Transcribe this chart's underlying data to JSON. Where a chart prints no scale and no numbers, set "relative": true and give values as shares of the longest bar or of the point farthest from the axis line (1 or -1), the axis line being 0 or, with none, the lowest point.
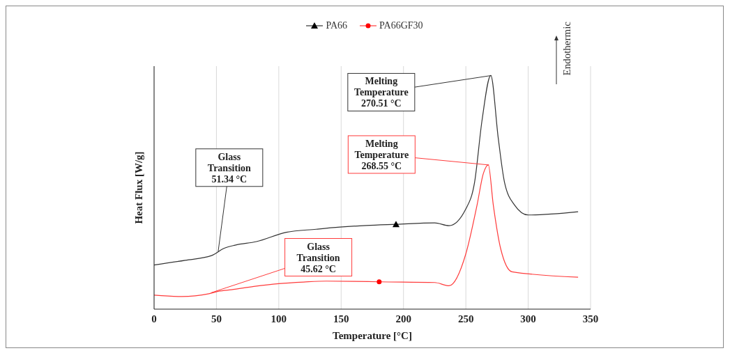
{
  "chart_data": {
    "type": "line",
    "xlabel": "Temperature [°C]",
    "ylabel": "Heat Flux [W/g]",
    "relative": true,
    "xlim": [
      0,
      350
    ],
    "xticks": [
      0,
      50,
      100,
      150,
      200,
      250,
      300,
      350
    ],
    "grid": "x",
    "legend": "top",
    "line_style": "solid",
    "series": [
      {
        "name": "PA66",
        "color": "#333333",
        "x": [
          0,
          25,
          46,
          56,
          65,
          82,
          106,
          130,
          149,
          170,
          194,
          225,
          236.5,
          250,
          257,
          263,
          270,
          276,
          281,
          289,
          300,
          340
        ],
        "values": [
          0.189,
          0.209,
          0.229,
          0.26,
          0.274,
          0.289,
          0.329,
          0.342,
          0.351,
          0.358,
          0.363,
          0.369,
          0.357,
          0.429,
          0.543,
          0.809,
          1,
          0.731,
          0.543,
          0.446,
          0.403,
          0.417
        ]
      },
      {
        "name": "PA66GF30",
        "color": "#ff3b3b",
        "x": [
          0,
          22,
          44,
          52,
          62,
          80,
          100,
          120,
          138,
          160,
          180.5,
          225,
          236.5,
          250,
          259,
          264,
          268,
          272,
          278,
          287,
          340
        ],
        "values": [
          0.06,
          0.054,
          0.066,
          0.077,
          0.083,
          0.097,
          0.109,
          0.116,
          0.12,
          0.119,
          0.117,
          0.114,
          0.1,
          0.237,
          0.446,
          0.58,
          0.617,
          0.446,
          0.257,
          0.16,
          0.137
        ]
      },
      {
        "type": "scatter",
        "color": "#000000",
        "marker": "triangle",
        "x": [
          194
        ],
        "values": [
          0.363
        ]
      },
      {
        "type": "scatter",
        "color": "#ff0000",
        "marker": "circle",
        "x": [
          180.5
        ],
        "values": [
          0.117
        ]
      }
    ],
    "annotations": [
      {
        "text": "Melting\nTemperature\n270.51 °C",
        "x": 270.51,
        "y": 1
      },
      {
        "text": "Melting\nTemperature\n268.55 °C",
        "x": 268.55,
        "y": 0.617
      },
      {
        "text": "Glass\nTransition\n51.34 °C",
        "x": 51.34,
        "y": 0.245
      },
      {
        "text": "Glass\nTransition\n45.62 °C",
        "x": 45.62,
        "y": 0.07
      },
      "Endothermic"
    ]
  }
}
